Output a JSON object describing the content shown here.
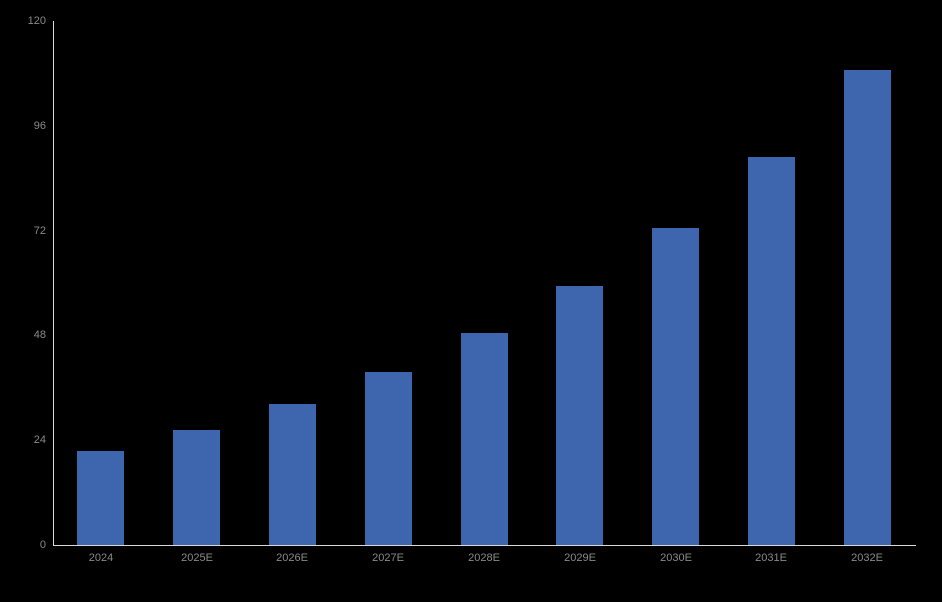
{
  "chart_data": {
    "type": "bar",
    "title": "",
    "xlabel": "",
    "ylabel": "",
    "categories": [
      "2024",
      "2025E",
      "2026E",
      "2027E",
      "2028E",
      "2029E",
      "2030E",
      "2031E",
      "2032E"
    ],
    "values": [
      21.6,
      26.4,
      32.4,
      39.7,
      48.6,
      59.4,
      72.6,
      88.9,
      108.8
    ],
    "ylim": [
      0,
      120
    ],
    "ytick_step": 24,
    "ytick_labels": [
      "0",
      "24",
      "48",
      "72",
      "96",
      "120"
    ],
    "grid": false,
    "legend": false,
    "background_color": "#000000",
    "bar_color": "#3d66ae",
    "axis_line_color": "#d9d9d9",
    "tick_label_color": "#898989"
  }
}
